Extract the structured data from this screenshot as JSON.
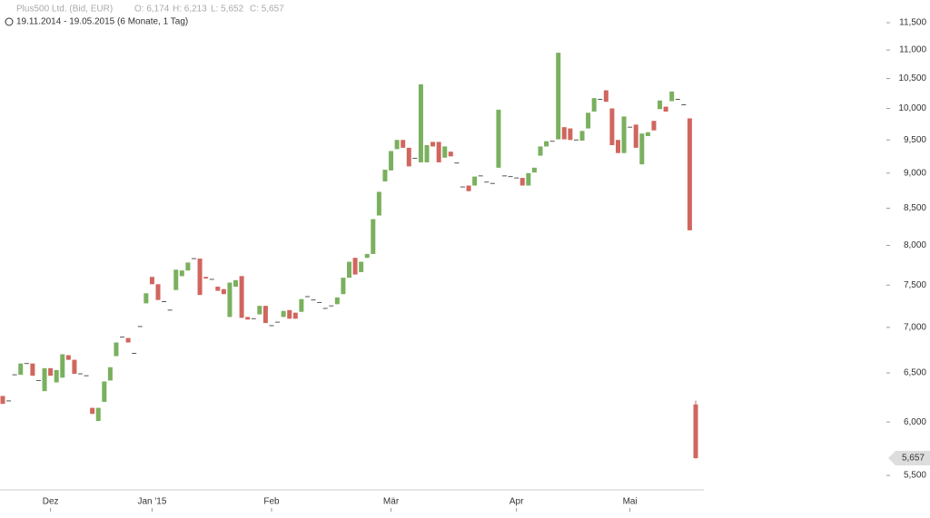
{
  "header": {
    "title": "Plus500 Ltd. (Bid, EUR)",
    "ohlc": [
      "O: 6,174",
      "H: 6,213",
      "L: 5,652",
      "C: 5,657"
    ],
    "range": "19.11.2014 - 19.05.2015 (6 Monate, 1 Tag)"
  },
  "chart_data": {
    "type": "candlestick",
    "log_scale": true,
    "grid": false,
    "up_color": "#7ab05e",
    "down_color": "#d0665f",
    "flat_color": "#555555",
    "ylim": [
      5372,
      11933
    ],
    "yticks": [
      {
        "value": 5500,
        "label": "5,500"
      },
      {
        "value": 6000,
        "label": "6,000"
      },
      {
        "value": 6500,
        "label": "6,500"
      },
      {
        "value": 7000,
        "label": "7,000"
      },
      {
        "value": 7500,
        "label": "7,500"
      },
      {
        "value": 8000,
        "label": "8,000"
      },
      {
        "value": 8500,
        "label": "8,500"
      },
      {
        "value": 9000,
        "label": "9,000"
      },
      {
        "value": 9500,
        "label": "9,500"
      },
      {
        "value": 10000,
        "label": "10,000"
      },
      {
        "value": 10500,
        "label": "10,500"
      },
      {
        "value": 11000,
        "label": "11,000"
      },
      {
        "value": 11500,
        "label": "11,500"
      }
    ],
    "last_price": {
      "value": 5657,
      "label": "5,657"
    },
    "categories": [
      null,
      null,
      null,
      null,
      null,
      null,
      null,
      null,
      "Dez",
      null,
      null,
      null,
      null,
      null,
      null,
      null,
      null,
      null,
      null,
      null,
      null,
      null,
      null,
      null,
      null,
      "Jan '15",
      null,
      null,
      null,
      null,
      null,
      null,
      null,
      null,
      null,
      null,
      null,
      null,
      null,
      null,
      null,
      null,
      null,
      null,
      null,
      "Feb",
      null,
      null,
      null,
      null,
      null,
      null,
      null,
      null,
      null,
      null,
      null,
      null,
      null,
      null,
      null,
      null,
      null,
      null,
      null,
      "Mär",
      null,
      null,
      null,
      null,
      null,
      null,
      null,
      null,
      null,
      null,
      null,
      null,
      null,
      null,
      null,
      null,
      null,
      null,
      null,
      null,
      "Apr",
      null,
      null,
      null,
      null,
      null,
      null,
      null,
      null,
      null,
      null,
      null,
      null,
      null,
      null,
      null,
      null,
      null,
      null,
      "Mai",
      null,
      null,
      null,
      null,
      null,
      null,
      null,
      null,
      null,
      null,
      null
    ],
    "open": [
      6260,
      6210,
      6480,
      6480,
      6600,
      6600,
      6420,
      6310,
      6550,
      6400,
      6450,
      6690,
      6640,
      6490,
      6470,
      6140,
      6010,
      6200,
      6420,
      6680,
      6890,
      6880,
      6710,
      7010,
      7280,
      7600,
      7510,
      7300,
      7200,
      7440,
      7610,
      7680,
      7830,
      7830,
      7600,
      7570,
      7480,
      7450,
      7120,
      7480,
      7610,
      7120,
      7100,
      7150,
      7250,
      7020,
      7060,
      7120,
      7200,
      7170,
      7180,
      7360,
      7320,
      7290,
      7220,
      7250,
      7270,
      7390,
      7590,
      7840,
      7660,
      7840,
      7890,
      8400,
      8880,
      9040,
      9360,
      9500,
      9380,
      9220,
      9160,
      9160,
      9470,
      9470,
      9230,
      9320,
      9150,
      8800,
      8820,
      8820,
      8960,
      8870,
      8850,
      9080,
      8960,
      8950,
      8930,
      8930,
      8820,
      9010,
      9260,
      9400,
      9480,
      9510,
      9700,
      9680,
      9500,
      9490,
      9680,
      9950,
      10150,
      10300,
      10000,
      9500,
      9300,
      9700,
      9740,
      9130,
      9560,
      9800,
      9990,
      10030,
      10120,
      10150,
      10060,
      9840,
      6174
    ],
    "high": [
      6260,
      6210,
      6480,
      6600,
      6600,
      6600,
      6420,
      6550,
      6550,
      6530,
      6700,
      6690,
      6640,
      6490,
      6470,
      6140,
      6140,
      6410,
      6560,
      6830,
      6890,
      6880,
      6710,
      7010,
      7400,
      7600,
      7510,
      7300,
      7200,
      7690,
      7680,
      7780,
      7830,
      7830,
      7600,
      7570,
      7480,
      7450,
      7530,
      7560,
      7610,
      7120,
      7100,
      7250,
      7250,
      7020,
      7060,
      7190,
      7200,
      7170,
      7330,
      7360,
      7320,
      7290,
      7220,
      7250,
      7350,
      7590,
      7790,
      7840,
      7790,
      7890,
      8350,
      8730,
      9050,
      9330,
      9500,
      9500,
      9380,
      9220,
      10400,
      9420,
      9470,
      9470,
      9400,
      9320,
      9150,
      8800,
      8820,
      8950,
      8960,
      8870,
      8850,
      9980,
      8960,
      8950,
      8930,
      8930,
      9000,
      9080,
      9400,
      9480,
      9480,
      10950,
      9700,
      9680,
      9500,
      9640,
      9930,
      10170,
      10150,
      10300,
      10000,
      9500,
      9870,
      9700,
      9740,
      9600,
      9620,
      9800,
      10130,
      10030,
      10280,
      10150,
      10060,
      9840,
      6213
    ],
    "low": [
      6180,
      6210,
      6480,
      6480,
      6600,
      6470,
      6420,
      6310,
      6470,
      6400,
      6450,
      6640,
      6490,
      6490,
      6470,
      6080,
      6010,
      6200,
      6420,
      6680,
      6890,
      6830,
      6710,
      7010,
      7280,
      7510,
      7320,
      7300,
      7200,
      7440,
      7610,
      7680,
      7830,
      7380,
      7580,
      7570,
      7430,
      7390,
      7120,
      7480,
      7110,
      7090,
      7100,
      7150,
      7050,
      7020,
      7060,
      7120,
      7100,
      7100,
      7180,
      7360,
      7320,
      7290,
      7220,
      7250,
      7270,
      7390,
      7590,
      7630,
      7660,
      7840,
      7890,
      8400,
      8880,
      9040,
      9360,
      9380,
      9100,
      9220,
      9160,
      9160,
      9400,
      9160,
      9230,
      9250,
      9150,
      8800,
      8740,
      8820,
      8960,
      8870,
      8850,
      9080,
      8960,
      8950,
      8930,
      8820,
      8820,
      9010,
      9260,
      9400,
      9480,
      9510,
      9510,
      9500,
      9500,
      9490,
      9680,
      9950,
      10150,
      10110,
      9420,
      9300,
      9300,
      9700,
      9380,
      9130,
      9560,
      9650,
      9990,
      9950,
      10120,
      10150,
      10060,
      8200,
      5652
    ],
    "close": [
      6180,
      6210,
      6480,
      6600,
      6600,
      6470,
      6420,
      6550,
      6470,
      6530,
      6700,
      6640,
      6490,
      6490,
      6470,
      6080,
      6140,
      6410,
      6560,
      6830,
      6890,
      6830,
      6710,
      7010,
      7400,
      7510,
      7320,
      7300,
      7200,
      7690,
      7680,
      7780,
      7830,
      7380,
      7580,
      7570,
      7430,
      7390,
      7530,
      7560,
      7110,
      7090,
      7100,
      7250,
      7050,
      7020,
      7060,
      7190,
      7100,
      7100,
      7330,
      7360,
      7320,
      7290,
      7220,
      7250,
      7350,
      7590,
      7790,
      7630,
      7790,
      7890,
      8350,
      8730,
      9050,
      9330,
      9500,
      9380,
      9100,
      9220,
      10400,
      9420,
      9400,
      9160,
      9400,
      9250,
      9150,
      8800,
      8740,
      8950,
      8960,
      8870,
      8850,
      9980,
      8960,
      8950,
      8930,
      8820,
      9000,
      9080,
      9400,
      9480,
      9480,
      10950,
      9510,
      9500,
      9500,
      9640,
      9930,
      10170,
      10150,
      10110,
      9420,
      9300,
      9870,
      9700,
      9380,
      9600,
      9620,
      9650,
      10130,
      9950,
      10280,
      10150,
      10060,
      8200,
      5657
    ]
  }
}
